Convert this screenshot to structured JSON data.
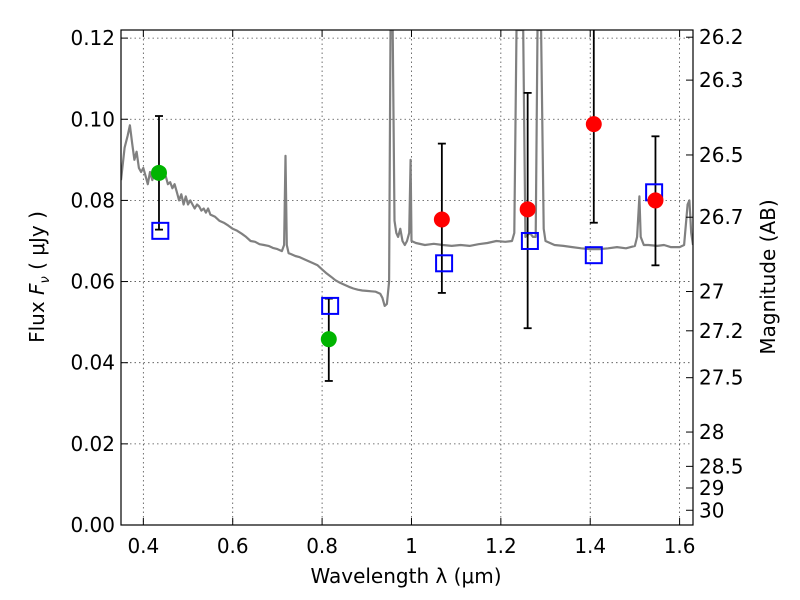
{
  "chart_data": {
    "type": "scatter",
    "xlabel": "Wavelength  λ (μm)",
    "ylabel": "Flux  Fν  ( μJy )",
    "ylabel_parts": {
      "prefix": "Flux  ",
      "symbol": "F",
      "subscript": "ν",
      "suffix": "  ( μJy )"
    },
    "y2label": "Magnitude (AB)",
    "xlim": [
      0.35,
      1.63
    ],
    "ylim": [
      0.0,
      0.122
    ],
    "xticks": [
      0.4,
      0.6,
      0.8,
      1.0,
      1.2,
      1.4,
      1.6
    ],
    "xtick_labels": [
      "0.4",
      "0.6",
      "0.8",
      "1",
      "1.2",
      "1.4",
      "1.6"
    ],
    "yticks": [
      0.0,
      0.02,
      0.04,
      0.06,
      0.08,
      0.1,
      0.12
    ],
    "ytick_labels": [
      "0.00",
      "0.02",
      "0.04",
      "0.06",
      "0.08",
      "0.10",
      "0.12"
    ],
    "mag_ticks": [
      26.2,
      26.3,
      26.5,
      26.7,
      27,
      27.2,
      27.5,
      28,
      28.5,
      29,
      30
    ],
    "mag_tick_labels": [
      "26.2",
      "26.3",
      "26.5",
      "26.7",
      "27",
      "27.2",
      "27.5",
      "28",
      "28.5",
      "29",
      "30"
    ],
    "grid": true,
    "series": [
      {
        "marker": "circle",
        "color": "#00b400",
        "points": [
          {
            "x": 0.435,
            "y": 0.0868,
            "yerr_low": 0.0728,
            "yerr_high": 0.1008
          },
          {
            "x": 0.815,
            "y": 0.0458,
            "yerr_low": 0.0355,
            "yerr_high": 0.0558
          }
        ]
      },
      {
        "marker": "circle",
        "color": "#ff0000",
        "points": [
          {
            "x": 1.068,
            "y": 0.0753,
            "yerr_low": 0.0572,
            "yerr_high": 0.094
          },
          {
            "x": 1.26,
            "y": 0.0778,
            "yerr_low": 0.0485,
            "yerr_high": 0.1065
          },
          {
            "x": 1.408,
            "y": 0.0988,
            "yerr_low": 0.0745,
            "yerr_high": 0.123
          },
          {
            "x": 1.546,
            "y": 0.08,
            "yerr_low": 0.064,
            "yerr_high": 0.0958
          }
        ]
      },
      {
        "marker": "open-square",
        "color": "#0000ff",
        "points": [
          {
            "x": 0.438,
            "y": 0.0725
          },
          {
            "x": 0.818,
            "y": 0.054
          },
          {
            "x": 1.073,
            "y": 0.0645
          },
          {
            "x": 1.265,
            "y": 0.07
          },
          {
            "x": 1.408,
            "y": 0.0665
          },
          {
            "x": 1.543,
            "y": 0.082
          }
        ]
      },
      {
        "marker": "line",
        "color": "#808080",
        "points": [
          [
            0.35,
            0.085
          ],
          [
            0.358,
            0.093
          ],
          [
            0.365,
            0.096
          ],
          [
            0.37,
            0.0985
          ],
          [
            0.375,
            0.094
          ],
          [
            0.38,
            0.09
          ],
          [
            0.385,
            0.092
          ],
          [
            0.39,
            0.088
          ],
          [
            0.395,
            0.087
          ],
          [
            0.4,
            0.088
          ],
          [
            0.405,
            0.086
          ],
          [
            0.41,
            0.084
          ],
          [
            0.415,
            0.087
          ],
          [
            0.42,
            0.085
          ],
          [
            0.425,
            0.0865
          ],
          [
            0.43,
            0.087
          ],
          [
            0.438,
            0.086
          ],
          [
            0.445,
            0.0875
          ],
          [
            0.45,
            0.086
          ],
          [
            0.455,
            0.084
          ],
          [
            0.46,
            0.0845
          ],
          [
            0.465,
            0.083
          ],
          [
            0.47,
            0.084
          ],
          [
            0.475,
            0.082
          ],
          [
            0.48,
            0.08
          ],
          [
            0.485,
            0.0815
          ],
          [
            0.49,
            0.079
          ],
          [
            0.495,
            0.081
          ],
          [
            0.5,
            0.079
          ],
          [
            0.505,
            0.08
          ],
          [
            0.51,
            0.079
          ],
          [
            0.515,
            0.078
          ],
          [
            0.52,
            0.079
          ],
          [
            0.525,
            0.0785
          ],
          [
            0.53,
            0.0775
          ],
          [
            0.535,
            0.078
          ],
          [
            0.54,
            0.077
          ],
          [
            0.545,
            0.078
          ],
          [
            0.55,
            0.0765
          ],
          [
            0.56,
            0.076
          ],
          [
            0.57,
            0.075
          ],
          [
            0.58,
            0.0745
          ],
          [
            0.59,
            0.0738
          ],
          [
            0.6,
            0.073
          ],
          [
            0.61,
            0.0725
          ],
          [
            0.62,
            0.0718
          ],
          [
            0.63,
            0.071
          ],
          [
            0.64,
            0.07
          ],
          [
            0.65,
            0.0698
          ],
          [
            0.66,
            0.0692
          ],
          [
            0.67,
            0.069
          ],
          [
            0.68,
            0.0688
          ],
          [
            0.69,
            0.0683
          ],
          [
            0.7,
            0.068
          ],
          [
            0.71,
            0.0675
          ],
          [
            0.715,
            0.069
          ],
          [
            0.718,
            0.091
          ],
          [
            0.721,
            0.069
          ],
          [
            0.725,
            0.067
          ],
          [
            0.73,
            0.0668
          ],
          [
            0.74,
            0.0663
          ],
          [
            0.75,
            0.066
          ],
          [
            0.76,
            0.0655
          ],
          [
            0.77,
            0.065
          ],
          [
            0.78,
            0.0645
          ],
          [
            0.79,
            0.064
          ],
          [
            0.8,
            0.063
          ],
          [
            0.81,
            0.062
          ],
          [
            0.82,
            0.0612
          ],
          [
            0.83,
            0.0603
          ],
          [
            0.84,
            0.0597
          ],
          [
            0.85,
            0.0592
          ],
          [
            0.86,
            0.0587
          ],
          [
            0.87,
            0.0583
          ],
          [
            0.88,
            0.058
          ],
          [
            0.89,
            0.0578
          ],
          [
            0.9,
            0.0577
          ],
          [
            0.91,
            0.0576
          ],
          [
            0.92,
            0.0575
          ],
          [
            0.93,
            0.057
          ],
          [
            0.935,
            0.056
          ],
          [
            0.94,
            0.054
          ],
          [
            0.945,
            0.0545
          ],
          [
            0.95,
            0.06
          ],
          [
            0.953,
            0.122
          ],
          [
            0.958,
            0.122
          ],
          [
            0.962,
            0.075
          ],
          [
            0.966,
            0.072
          ],
          [
            0.97,
            0.071
          ],
          [
            0.975,
            0.073
          ],
          [
            0.98,
            0.07
          ],
          [
            0.985,
            0.069
          ],
          [
            0.99,
            0.07
          ],
          [
            0.995,
            0.072
          ],
          [
            0.998,
            0.09
          ],
          [
            1.0,
            0.07
          ],
          [
            1.01,
            0.0695
          ],
          [
            1.03,
            0.069
          ],
          [
            1.05,
            0.0693
          ],
          [
            1.07,
            0.069
          ],
          [
            1.09,
            0.0688
          ],
          [
            1.11,
            0.069
          ],
          [
            1.13,
            0.0688
          ],
          [
            1.15,
            0.0692
          ],
          [
            1.17,
            0.0695
          ],
          [
            1.19,
            0.07
          ],
          [
            1.21,
            0.0698
          ],
          [
            1.225,
            0.07
          ],
          [
            1.23,
            0.072
          ],
          [
            1.235,
            0.122
          ],
          [
            1.25,
            0.122
          ],
          [
            1.255,
            0.071
          ],
          [
            1.265,
            0.072
          ],
          [
            1.272,
            0.071
          ],
          [
            1.278,
            0.071
          ],
          [
            1.282,
            0.122
          ],
          [
            1.29,
            0.122
          ],
          [
            1.296,
            0.073
          ],
          [
            1.3,
            0.07
          ],
          [
            1.32,
            0.069
          ],
          [
            1.34,
            0.0688
          ],
          [
            1.36,
            0.0685
          ],
          [
            1.38,
            0.0682
          ],
          [
            1.4,
            0.068
          ],
          [
            1.42,
            0.068
          ],
          [
            1.44,
            0.0682
          ],
          [
            1.46,
            0.0685
          ],
          [
            1.48,
            0.0682
          ],
          [
            1.5,
            0.0688
          ],
          [
            1.505,
            0.071
          ],
          [
            1.51,
            0.081
          ],
          [
            1.513,
            0.071
          ],
          [
            1.52,
            0.069
          ],
          [
            1.53,
            0.069
          ],
          [
            1.55,
            0.0688
          ],
          [
            1.565,
            0.069
          ],
          [
            1.58,
            0.0685
          ],
          [
            1.6,
            0.0685
          ],
          [
            1.61,
            0.069
          ],
          [
            1.618,
            0.079
          ],
          [
            1.622,
            0.08
          ],
          [
            1.626,
            0.072
          ],
          [
            1.63,
            0.069
          ]
        ]
      }
    ]
  }
}
